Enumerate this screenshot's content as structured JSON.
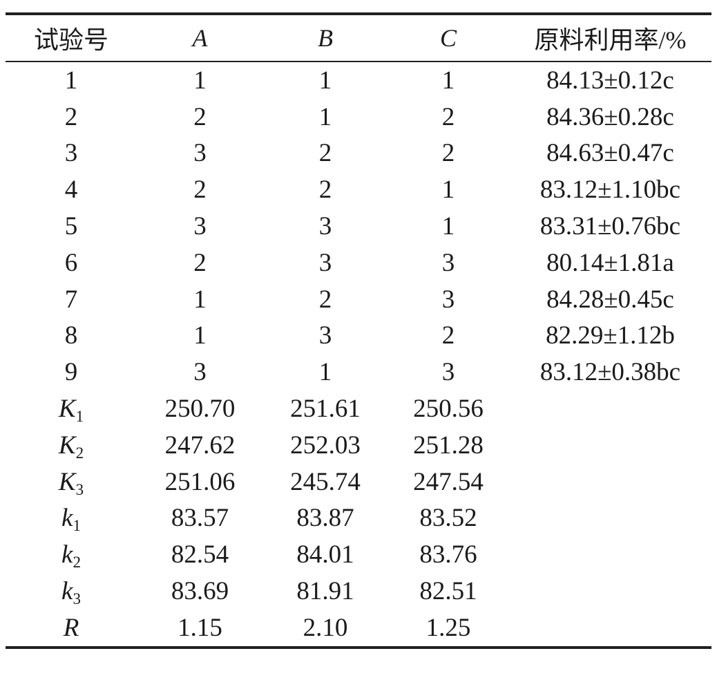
{
  "table": {
    "columns": [
      "试验号",
      "A",
      "B",
      "C",
      "原料利用率/%"
    ],
    "experiment_rows": [
      {
        "no": "1",
        "A": "1",
        "B": "1",
        "C": "1",
        "yield": "84.13±0.12c"
      },
      {
        "no": "2",
        "A": "2",
        "B": "1",
        "C": "2",
        "yield": "84.36±0.28c"
      },
      {
        "no": "3",
        "A": "3",
        "B": "2",
        "C": "2",
        "yield": "84.63±0.47c"
      },
      {
        "no": "4",
        "A": "2",
        "B": "2",
        "C": "1",
        "yield": "83.12±1.10bc"
      },
      {
        "no": "5",
        "A": "3",
        "B": "3",
        "C": "1",
        "yield": "83.31±0.76bc"
      },
      {
        "no": "6",
        "A": "2",
        "B": "3",
        "C": "3",
        "yield": "80.14±1.81a"
      },
      {
        "no": "7",
        "A": "1",
        "B": "2",
        "C": "3",
        "yield": "84.28±0.45c"
      },
      {
        "no": "8",
        "A": "1",
        "B": "3",
        "C": "2",
        "yield": "82.29±1.12b"
      },
      {
        "no": "9",
        "A": "3",
        "B": "1",
        "C": "3",
        "yield": "83.12±0.38bc"
      }
    ],
    "stat_rows": [
      {
        "label": {
          "base": "K",
          "sub": "1"
        },
        "A": "250.70",
        "B": "251.61",
        "C": "250.56"
      },
      {
        "label": {
          "base": "K",
          "sub": "2"
        },
        "A": "247.62",
        "B": "252.03",
        "C": "251.28"
      },
      {
        "label": {
          "base": "K",
          "sub": "3"
        },
        "A": "251.06",
        "B": "245.74",
        "C": "247.54"
      },
      {
        "label": {
          "base": "k",
          "sub": "1"
        },
        "A": "83.57",
        "B": "83.87",
        "C": "83.52"
      },
      {
        "label": {
          "base": "k",
          "sub": "2"
        },
        "A": "82.54",
        "B": "84.01",
        "C": "83.76"
      },
      {
        "label": {
          "base": "k",
          "sub": "3"
        },
        "A": "83.69",
        "B": "81.91",
        "C": "82.51"
      },
      {
        "label": {
          "base": "R",
          "sub": ""
        },
        "A": "1.15",
        "B": "2.10",
        "C": "1.25"
      }
    ]
  }
}
